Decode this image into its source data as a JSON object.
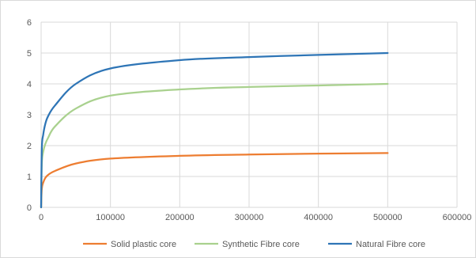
{
  "chart_data": {
    "type": "line",
    "title": "",
    "xlabel": "",
    "ylabel": "",
    "xlim": [
      0,
      600000
    ],
    "ylim": [
      0,
      6
    ],
    "x_ticks": [
      0,
      100000,
      200000,
      300000,
      400000,
      500000,
      600000
    ],
    "y_ticks": [
      0,
      1,
      2,
      3,
      4,
      5,
      6
    ],
    "grid": true,
    "legend_position": "bottom",
    "series": [
      {
        "name": "Solid plastic core",
        "color": "#ed7d31",
        "x": [
          0,
          1000,
          3000,
          6000,
          10000,
          20000,
          50000,
          100000,
          200000,
          300000,
          400000,
          500000
        ],
        "y": [
          0,
          0.6,
          0.8,
          0.95,
          1.05,
          1.18,
          1.42,
          1.58,
          1.67,
          1.71,
          1.74,
          1.76
        ]
      },
      {
        "name": "Synthetic Fibre core",
        "color": "#a9d18e",
        "x": [
          0,
          1000,
          3000,
          6000,
          10000,
          20000,
          50000,
          100000,
          200000,
          300000,
          400000,
          500000
        ],
        "y": [
          0,
          1.4,
          1.8,
          2.05,
          2.25,
          2.62,
          3.2,
          3.62,
          3.82,
          3.9,
          3.95,
          4.0
        ]
      },
      {
        "name": "Natural Fibre core",
        "color": "#2e75b6",
        "x": [
          0,
          1000,
          3000,
          6000,
          10000,
          20000,
          50000,
          100000,
          200000,
          300000,
          400000,
          500000
        ],
        "y": [
          0,
          1.9,
          2.35,
          2.7,
          2.95,
          3.3,
          4.0,
          4.5,
          4.77,
          4.87,
          4.94,
          5.0
        ]
      }
    ]
  }
}
